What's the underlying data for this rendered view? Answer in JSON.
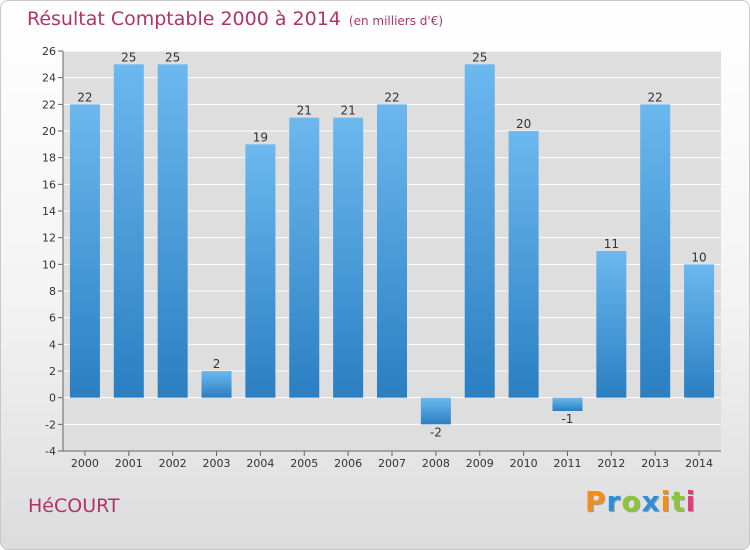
{
  "chart_data": {
    "type": "bar",
    "title": "Résultat Comptable 2000 à 2014",
    "subtitle": "(en milliers d'€)",
    "categories": [
      "2000",
      "2001",
      "2002",
      "2003",
      "2004",
      "2005",
      "2006",
      "2007",
      "2008",
      "2009",
      "2010",
      "2011",
      "2012",
      "2013",
      "2014"
    ],
    "values": [
      22,
      25,
      25,
      2,
      19,
      21,
      21,
      22,
      -2,
      25,
      20,
      -1,
      11,
      22,
      10
    ],
    "ylim": [
      -4,
      26
    ],
    "yticks": [
      -4,
      -2,
      0,
      2,
      4,
      6,
      8,
      10,
      12,
      14,
      16,
      18,
      20,
      22,
      24,
      26
    ],
    "xlabel": "",
    "ylabel": "",
    "grid": true
  },
  "town": "HéCOURT",
  "logo": {
    "letters": [
      "P",
      "r",
      "o",
      "x",
      "i",
      "t",
      "i"
    ],
    "colors": [
      "#f28c1a",
      "#2f8fd6",
      "#8cc63f",
      "#2f8fd6",
      "#f28c1a",
      "#8cc63f",
      "#e63b7a"
    ]
  },
  "colors": {
    "title": "#b0346a",
    "bar_light": "#6cb8ef",
    "bar_dark": "#2a7fc2",
    "grid": "#ffffff",
    "plot_bg": "#dedede"
  }
}
